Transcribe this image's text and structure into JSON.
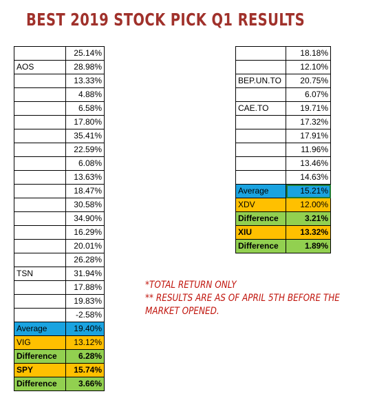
{
  "title": "BEST 2019 STOCK PICK Q1 RESULTS",
  "left_table": {
    "rows": [
      {
        "label": "",
        "value": "25.14%"
      },
      {
        "label": "AOS",
        "value": "28.98%"
      },
      {
        "label": "",
        "value": "13.33%"
      },
      {
        "label": "",
        "value": "4.88%"
      },
      {
        "label": "",
        "value": "6.58%"
      },
      {
        "label": "",
        "value": "17.80%"
      },
      {
        "label": "",
        "value": "35.41%"
      },
      {
        "label": "",
        "value": "22.59%"
      },
      {
        "label": "",
        "value": "6.08%"
      },
      {
        "label": "",
        "value": "13.63%"
      },
      {
        "label": "",
        "value": "18.47%"
      },
      {
        "label": "",
        "value": "30.58%"
      },
      {
        "label": "",
        "value": "34.90%"
      },
      {
        "label": "",
        "value": "16.29%"
      },
      {
        "label": "",
        "value": "20.01%"
      },
      {
        "label": "",
        "value": "26.28%"
      },
      {
        "label": "TSN",
        "value": "31.94%"
      },
      {
        "label": "",
        "value": "17.88%"
      },
      {
        "label": "",
        "value": "19.83%"
      },
      {
        "label": "",
        "value": "-2.58%"
      }
    ],
    "summary": [
      {
        "label": "Average",
        "value": "19.40%",
        "style": "average"
      },
      {
        "label": "VIG",
        "value": "13.12%",
        "style": "bench"
      },
      {
        "label": "Difference",
        "value": "6.28%",
        "style": "diff"
      },
      {
        "label": "SPY",
        "value": "15.74%",
        "style": "bench bold"
      },
      {
        "label": "Difference",
        "value": "3.66%",
        "style": "diff"
      }
    ]
  },
  "right_table": {
    "rows": [
      {
        "label": "",
        "value": "18.18%"
      },
      {
        "label": "",
        "value": "12.10%"
      },
      {
        "label": "BEP.UN.TO",
        "value": "20.75%"
      },
      {
        "label": "",
        "value": "6.07%"
      },
      {
        "label": "CAE.TO",
        "value": "19.71%"
      },
      {
        "label": "",
        "value": "17.32%"
      },
      {
        "label": "",
        "value": "17.91%"
      },
      {
        "label": "",
        "value": "11.96%"
      },
      {
        "label": "",
        "value": "13.46%"
      },
      {
        "label": "",
        "value": "14.63%"
      }
    ],
    "summary": [
      {
        "label": "Average",
        "value": "15.21%",
        "style": "average",
        "selected": true
      },
      {
        "label": "XDV",
        "value": "12.00%",
        "style": "bench"
      },
      {
        "label": "Difference",
        "value": "3.21%",
        "style": "diff"
      },
      {
        "label": "XIU",
        "value": "13.32%",
        "style": "bench bold"
      },
      {
        "label": "Difference",
        "value": "1.89%",
        "style": "diff"
      }
    ]
  },
  "notes": [
    "*TOTAL RETURN ONLY",
    "** RESULTS ARE AS OF APRIL 5TH BEFORE THE MARKET OPENED."
  ],
  "colors": {
    "title": "#a0312b",
    "notes": "#c0140c",
    "average_fill": "#1aa3e0",
    "benchmark_fill": "#ffc000",
    "difference_fill": "#92d050"
  }
}
